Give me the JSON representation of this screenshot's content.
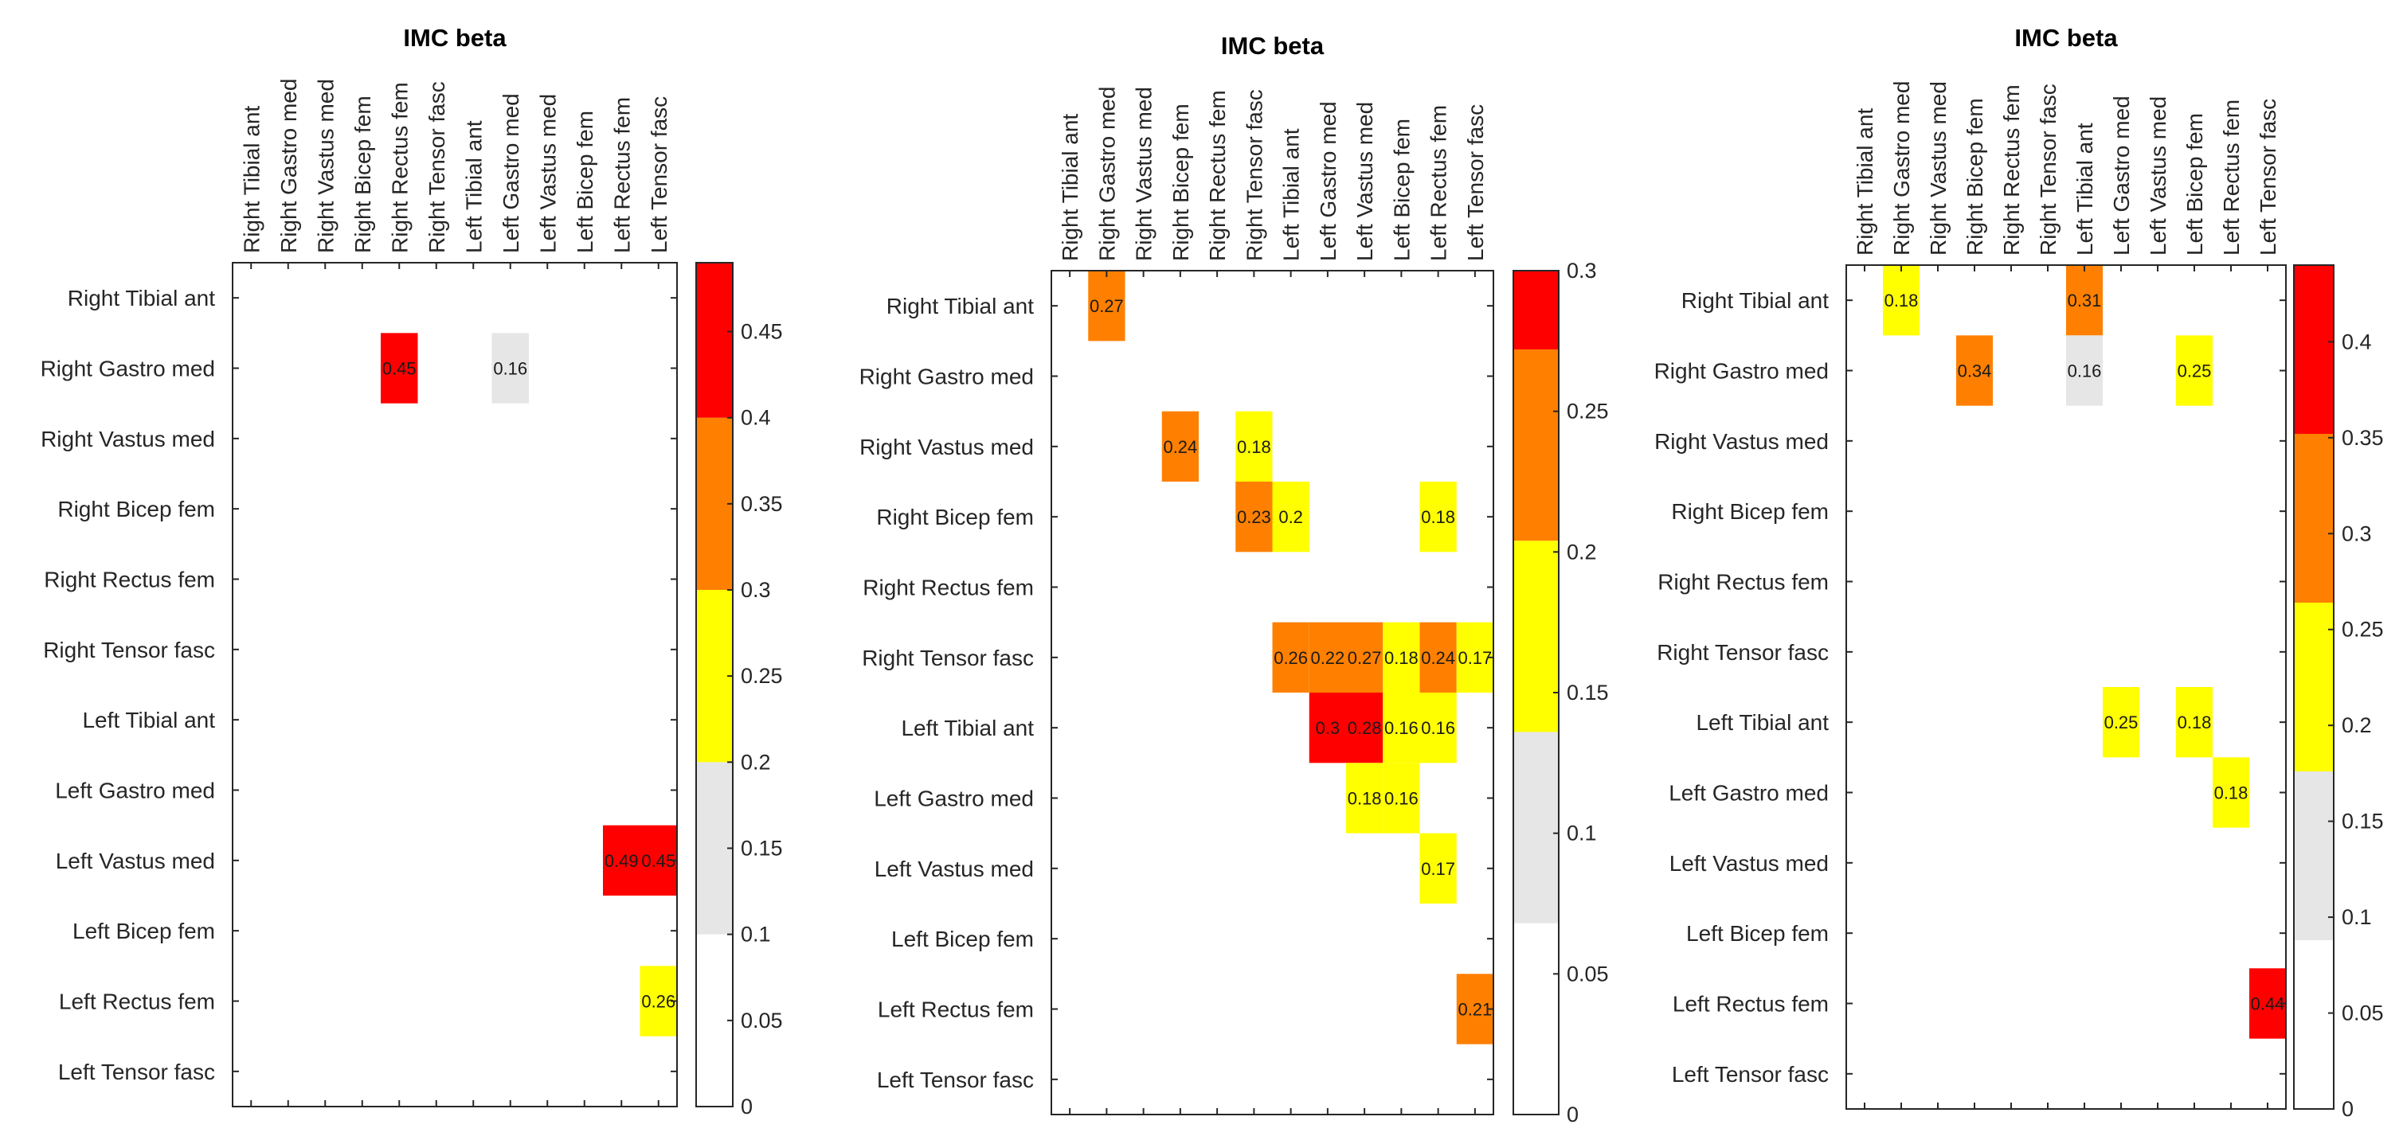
{
  "chart_data": [
    {
      "type": "heatmap",
      "title": "IMC beta",
      "rows": [
        "Right Tibial ant",
        "Right Gastro med",
        "Right Vastus med",
        "Right Bicep fem",
        "Right Rectus fem",
        "Right Tensor fasc",
        "Left Tibial ant",
        "Left Gastro med",
        "Left Vastus med",
        "Left Bicep fem",
        "Left Rectus fem",
        "Left Tensor fasc"
      ],
      "columns": [
        "Right Tibial ant",
        "Right Gastro med",
        "Right Vastus med",
        "Right Bicep fem",
        "Right Rectus fem",
        "Right Tensor fasc",
        "Left Tibial ant",
        "Left Gastro med",
        "Left Vastus med",
        "Left Bicep fem",
        "Left Rectus fem",
        "Left Tensor fasc"
      ],
      "cells": [
        {
          "row": 1,
          "col": 4,
          "value": 0.45,
          "label": "0.45"
        },
        {
          "row": 1,
          "col": 7,
          "value": 0.16,
          "label": "0.16"
        },
        {
          "row": 8,
          "col": 10,
          "value": 0.49,
          "label": "0.49"
        },
        {
          "row": 8,
          "col": 11,
          "value": 0.45,
          "label": "0.45"
        },
        {
          "row": 10,
          "col": 11,
          "value": 0.26,
          "label": "0.26"
        }
      ],
      "colorbar": {
        "range": [
          0,
          0.49
        ],
        "bins": [
          [
            0,
            0.1,
            "#ffffff"
          ],
          [
            0.1,
            0.2,
            "#e6e6e6"
          ],
          [
            0.2,
            0.3,
            "#ffff00"
          ],
          [
            0.3,
            0.4,
            "#ff8000"
          ],
          [
            0.4,
            0.49,
            "#ff0000"
          ]
        ],
        "ticks": [
          0,
          0.05,
          0.1,
          0.15,
          0.2,
          0.25,
          0.3,
          0.35,
          0.4,
          0.45
        ],
        "tick_labels": [
          "0",
          "0.05",
          "0.1",
          "0.15",
          "0.2",
          "0.25",
          "0.3",
          "0.35",
          "0.4",
          "0.45"
        ]
      }
    },
    {
      "type": "heatmap",
      "title": "IMC beta",
      "rows": [
        "Right Tibial ant",
        "Right Gastro med",
        "Right Vastus med",
        "Right Bicep fem",
        "Right Rectus fem",
        "Right Tensor fasc",
        "Left Tibial ant",
        "Left Gastro med",
        "Left Vastus med",
        "Left Bicep fem",
        "Left Rectus fem",
        "Left Tensor fasc"
      ],
      "columns": [
        "Right Tibial ant",
        "Right Gastro med",
        "Right Vastus med",
        "Right Bicep fem",
        "Right Rectus fem",
        "Right Tensor fasc",
        "Left Tibial ant",
        "Left Gastro med",
        "Left Vastus med",
        "Left Bicep fem",
        "Left Rectus fem",
        "Left Tensor fasc"
      ],
      "cells": [
        {
          "row": 0,
          "col": 1,
          "value": 0.27,
          "label": "0.27"
        },
        {
          "row": 2,
          "col": 3,
          "value": 0.24,
          "label": "0.24"
        },
        {
          "row": 2,
          "col": 5,
          "value": 0.18,
          "label": "0.18"
        },
        {
          "row": 3,
          "col": 5,
          "value": 0.23,
          "label": "0.23"
        },
        {
          "row": 3,
          "col": 6,
          "value": 0.2,
          "label": "0.2"
        },
        {
          "row": 3,
          "col": 10,
          "value": 0.18,
          "label": "0.18"
        },
        {
          "row": 5,
          "col": 6,
          "value": 0.26,
          "label": "0.26"
        },
        {
          "row": 5,
          "col": 7,
          "value": 0.22,
          "label": "0.22"
        },
        {
          "row": 5,
          "col": 8,
          "value": 0.27,
          "label": "0.27"
        },
        {
          "row": 5,
          "col": 9,
          "value": 0.18,
          "label": "0.18"
        },
        {
          "row": 5,
          "col": 10,
          "value": 0.24,
          "label": "0.24"
        },
        {
          "row": 5,
          "col": 11,
          "value": 0.17,
          "label": "0.17"
        },
        {
          "row": 6,
          "col": 7,
          "value": 0.3,
          "label": "0.3"
        },
        {
          "row": 6,
          "col": 8,
          "value": 0.28,
          "label": "0.28"
        },
        {
          "row": 6,
          "col": 9,
          "value": 0.16,
          "label": "0.16"
        },
        {
          "row": 6,
          "col": 10,
          "value": 0.16,
          "label": "0.16"
        },
        {
          "row": 7,
          "col": 8,
          "value": 0.18,
          "label": "0.18"
        },
        {
          "row": 7,
          "col": 9,
          "value": 0.16,
          "label": "0.16"
        },
        {
          "row": 8,
          "col": 10,
          "value": 0.17,
          "label": "0.17"
        },
        {
          "row": 10,
          "col": 11,
          "value": 0.21,
          "label": "0.21"
        }
      ],
      "colorbar": {
        "range": [
          0,
          0.3
        ],
        "bins": [
          [
            0,
            0.068,
            "#ffffff"
          ],
          [
            0.068,
            0.136,
            "#e6e6e6"
          ],
          [
            0.136,
            0.204,
            "#ffff00"
          ],
          [
            0.204,
            0.272,
            "#ff8000"
          ],
          [
            0.272,
            0.3,
            "#ff0000"
          ]
        ],
        "ticks": [
          0,
          0.05,
          0.1,
          0.15,
          0.2,
          0.25,
          0.3
        ],
        "tick_labels": [
          "0",
          "0.05",
          "0.1",
          "0.15",
          "0.2",
          "0.25",
          "0.3"
        ]
      }
    },
    {
      "type": "heatmap",
      "title": "IMC beta",
      "rows": [
        "Right Tibial ant",
        "Right Gastro med",
        "Right Vastus med",
        "Right Bicep fem",
        "Right Rectus fem",
        "Right Tensor fasc",
        "Left Tibial ant",
        "Left Gastro med",
        "Left Vastus med",
        "Left Bicep fem",
        "Left Rectus fem",
        "Left Tensor fasc"
      ],
      "columns": [
        "Right Tibial ant",
        "Right Gastro med",
        "Right Vastus med",
        "Right Bicep fem",
        "Right Rectus fem",
        "Right Tensor fasc",
        "Left Tibial ant",
        "Left Gastro med",
        "Left Vastus med",
        "Left Bicep fem",
        "Left Rectus fem",
        "Left Tensor fasc"
      ],
      "cells": [
        {
          "row": 0,
          "col": 1,
          "value": 0.18,
          "label": "0.18"
        },
        {
          "row": 0,
          "col": 6,
          "value": 0.31,
          "label": "0.31"
        },
        {
          "row": 1,
          "col": 3,
          "value": 0.34,
          "label": "0.34"
        },
        {
          "row": 1,
          "col": 6,
          "value": 0.16,
          "label": "0.16"
        },
        {
          "row": 1,
          "col": 9,
          "value": 0.25,
          "label": "0.25"
        },
        {
          "row": 6,
          "col": 7,
          "value": 0.25,
          "label": "0.25"
        },
        {
          "row": 6,
          "col": 9,
          "value": 0.18,
          "label": "0.18"
        },
        {
          "row": 7,
          "col": 10,
          "value": 0.18,
          "label": "0.18"
        },
        {
          "row": 10,
          "col": 11,
          "value": 0.44,
          "label": "0.44"
        }
      ],
      "colorbar": {
        "range": [
          0,
          0.44
        ],
        "bins": [
          [
            0,
            0.088,
            "#ffffff"
          ],
          [
            0.088,
            0.176,
            "#e6e6e6"
          ],
          [
            0.176,
            0.264,
            "#ffff00"
          ],
          [
            0.264,
            0.352,
            "#ff8000"
          ],
          [
            0.352,
            0.44,
            "#ff0000"
          ]
        ],
        "ticks": [
          0,
          0.05,
          0.1,
          0.15,
          0.2,
          0.25,
          0.3,
          0.35,
          0.4
        ],
        "tick_labels": [
          "0",
          "0.05",
          "0.1",
          "0.15",
          "0.2",
          "0.25",
          "0.3",
          "0.35",
          "0.4"
        ]
      }
    }
  ]
}
